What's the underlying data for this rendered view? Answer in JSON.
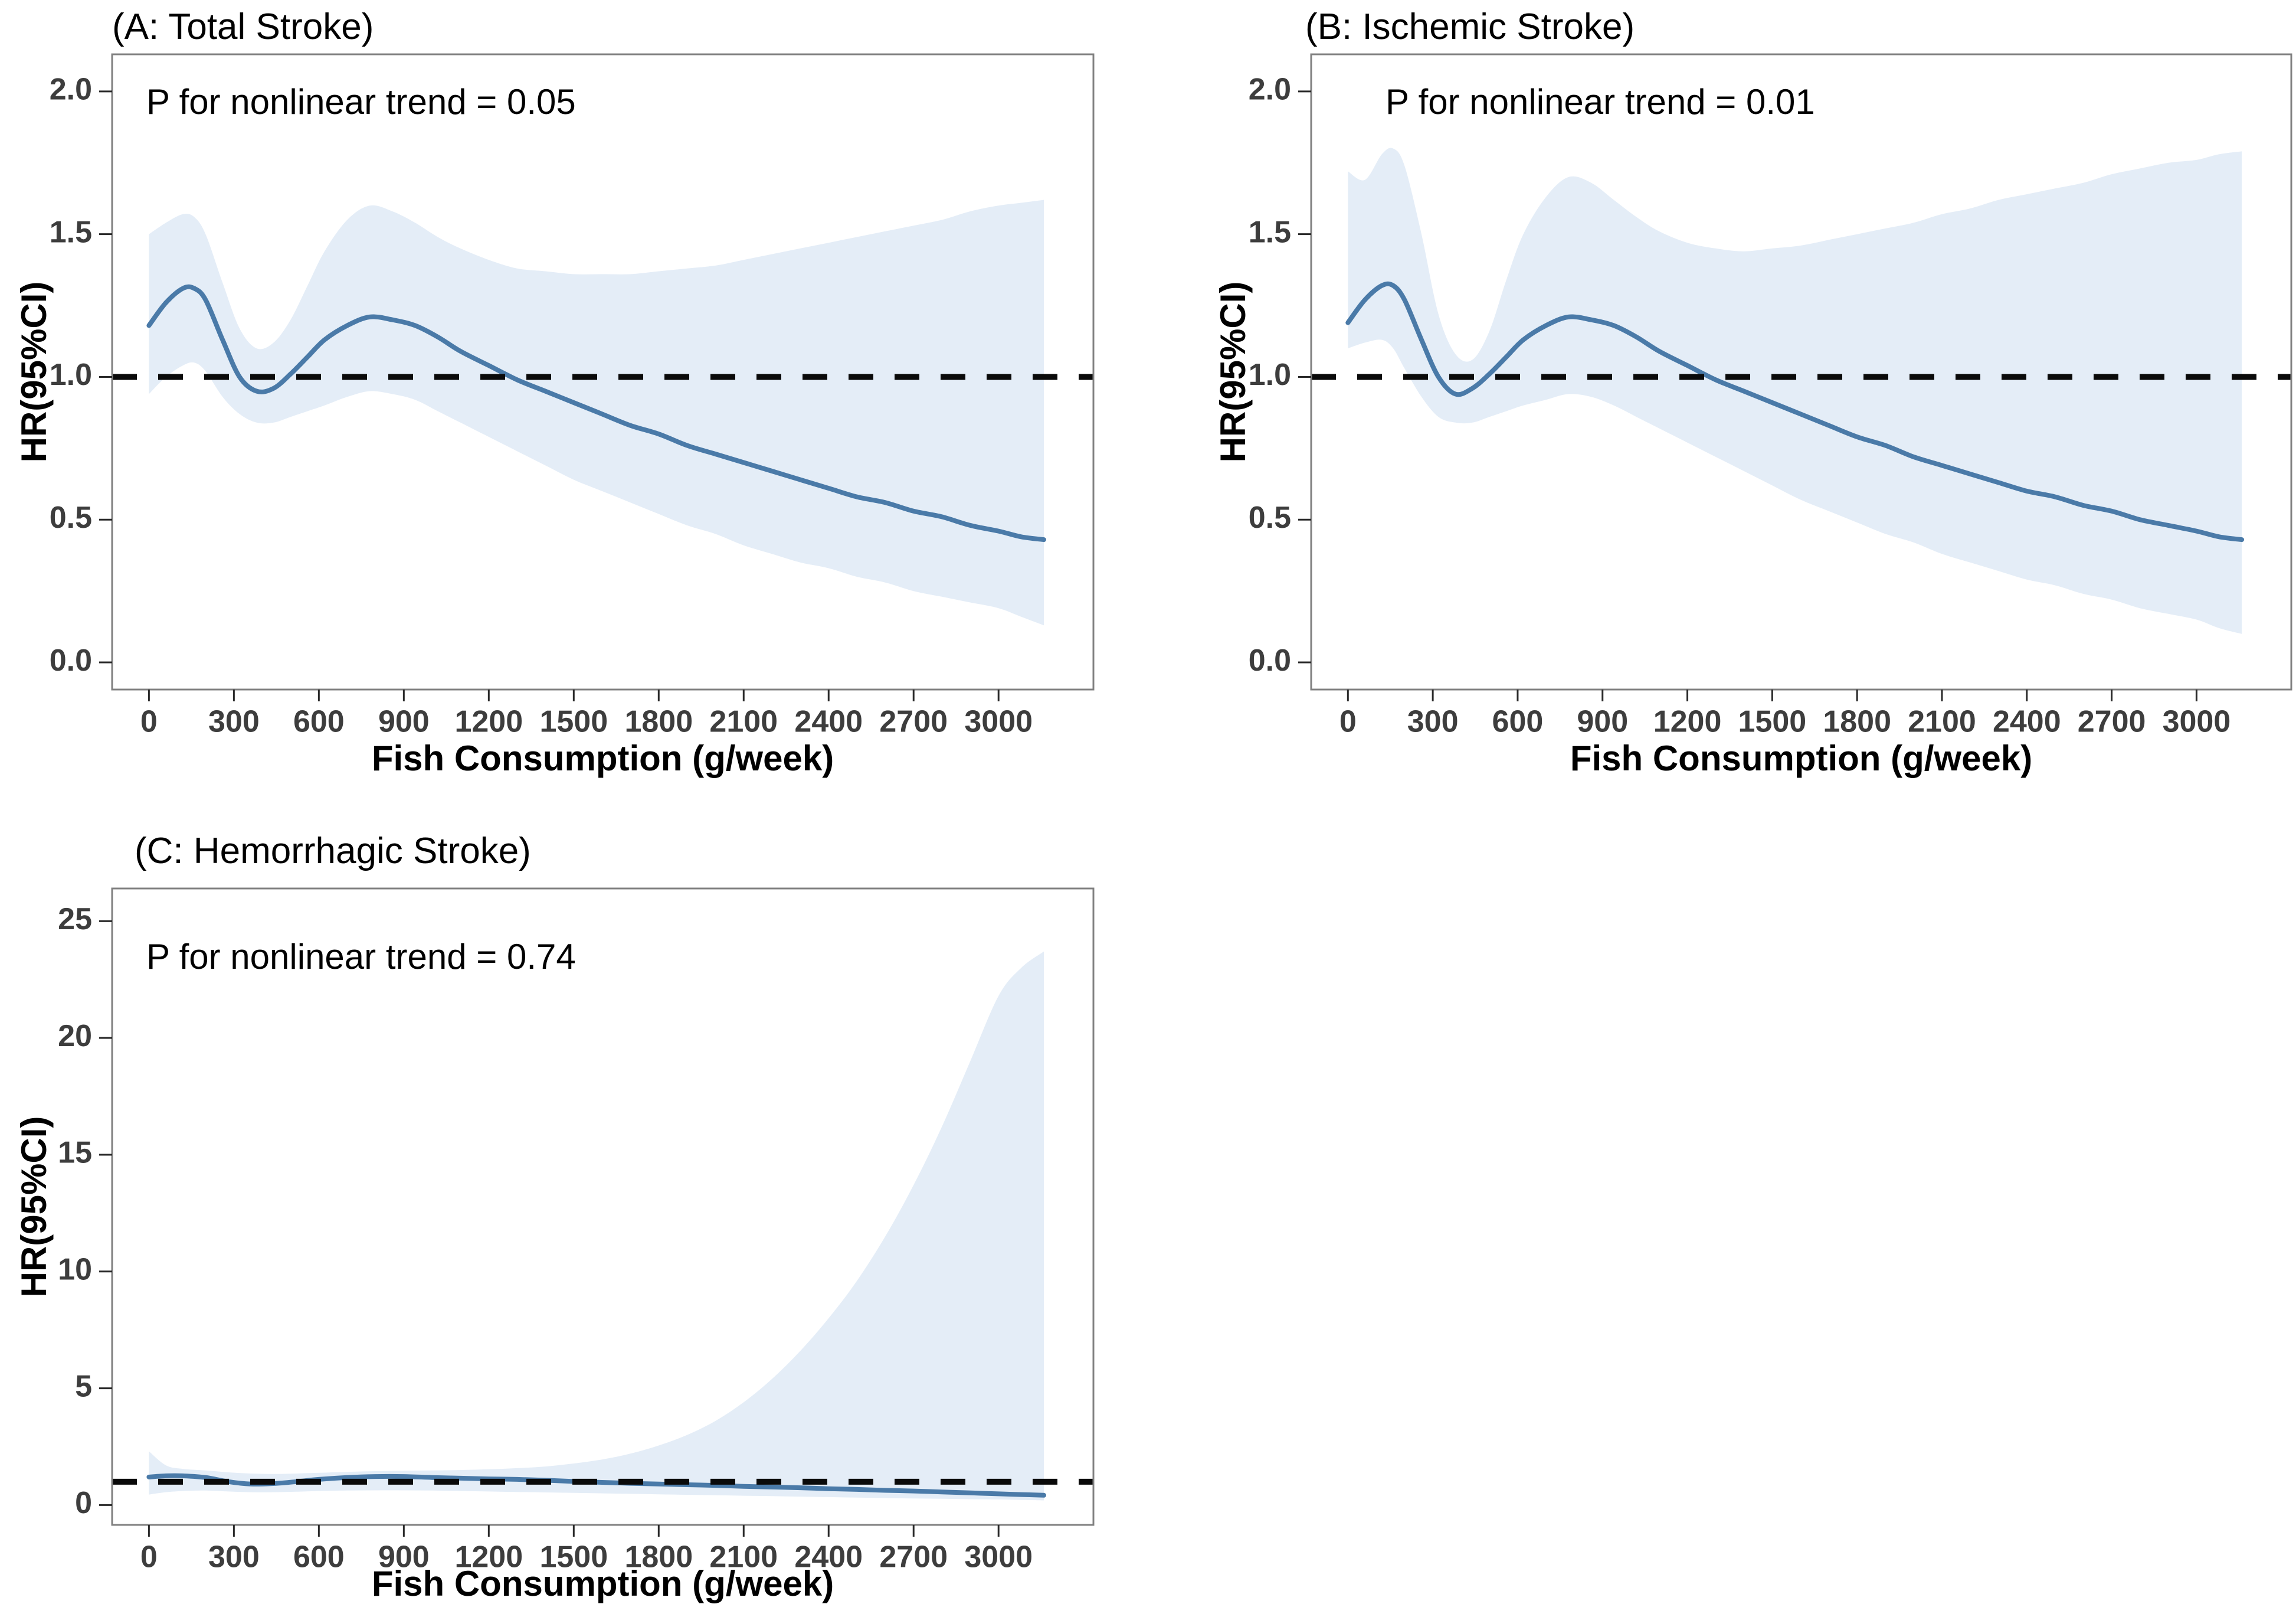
{
  "figure": {
    "background": "#ffffff",
    "x_axis_title": "Fish Consumption (g/week)",
    "y_axis_title": "HR(95%CI)"
  },
  "colors": {
    "ci_band": "#e4edf7",
    "curve": "#4a7aa8",
    "reference_line": "#0a0a0a",
    "plot_border": "#808080",
    "tick_mark": "#2a2a2a",
    "tick_label": "#3d3d3d",
    "text": "#000000"
  },
  "chart_data": [
    {
      "id": "A",
      "type": "line",
      "title": "(A: Total Stroke)",
      "p_label": "P for nonlinear trend = 0.05",
      "xlabel": "Fish Consumption (g/week)",
      "ylabel": "HR(95%CI)",
      "x_ticks": [
        0,
        300,
        600,
        900,
        1200,
        1500,
        1800,
        2100,
        2400,
        2700,
        3000
      ],
      "y_tick_values": [
        0,
        0.5,
        1,
        1.5,
        2
      ],
      "y_tick_labels": [
        "0.0",
        "0.5",
        "1.0",
        "1.5",
        "2.0"
      ],
      "xlim": [
        -130,
        3335
      ],
      "ylim": [
        -0.095,
        2.13
      ],
      "ref_line_y": 1,
      "grid": false,
      "legend_position": "none",
      "series": {
        "name": "HR with 95% CI",
        "x": [
          0,
          60,
          120,
          160,
          200,
          260,
          320,
          380,
          440,
          500,
          560,
          620,
          700,
          780,
          860,
          940,
          1020,
          1100,
          1200,
          1300,
          1400,
          1500,
          1600,
          1700,
          1800,
          1900,
          2000,
          2100,
          2200,
          2300,
          2400,
          2500,
          2600,
          2700,
          2800,
          2900,
          3000,
          3080,
          3160
        ],
        "hr": [
          1.18,
          1.26,
          1.31,
          1.31,
          1.27,
          1.13,
          1.0,
          0.95,
          0.96,
          1.01,
          1.07,
          1.13,
          1.18,
          1.21,
          1.2,
          1.18,
          1.14,
          1.09,
          1.04,
          0.99,
          0.95,
          0.91,
          0.87,
          0.83,
          0.8,
          0.76,
          0.73,
          0.7,
          0.67,
          0.64,
          0.61,
          0.58,
          0.56,
          0.53,
          0.51,
          0.48,
          0.46,
          0.44,
          0.43
        ],
        "ci_low": [
          0.94,
          1.0,
          1.04,
          1.05,
          1.02,
          0.93,
          0.87,
          0.84,
          0.84,
          0.86,
          0.88,
          0.9,
          0.93,
          0.95,
          0.94,
          0.92,
          0.88,
          0.84,
          0.79,
          0.74,
          0.69,
          0.64,
          0.6,
          0.56,
          0.52,
          0.48,
          0.45,
          0.41,
          0.38,
          0.35,
          0.33,
          0.3,
          0.28,
          0.25,
          0.23,
          0.21,
          0.19,
          0.16,
          0.13
        ],
        "ci_high": [
          1.5,
          1.54,
          1.57,
          1.56,
          1.5,
          1.33,
          1.17,
          1.1,
          1.12,
          1.2,
          1.32,
          1.44,
          1.55,
          1.6,
          1.58,
          1.54,
          1.49,
          1.45,
          1.41,
          1.38,
          1.37,
          1.36,
          1.36,
          1.36,
          1.37,
          1.38,
          1.39,
          1.41,
          1.43,
          1.45,
          1.47,
          1.49,
          1.51,
          1.53,
          1.55,
          1.58,
          1.6,
          1.61,
          1.62
        ]
      }
    },
    {
      "id": "B",
      "type": "line",
      "title": "(B: Ischemic Stroke)",
      "p_label": "P for nonlinear trend = 0.01",
      "xlabel": "Fish Consumption (g/week)",
      "ylabel": "HR(95%CI)",
      "x_ticks": [
        0,
        300,
        600,
        900,
        1200,
        1500,
        1800,
        2100,
        2400,
        2700,
        3000
      ],
      "y_tick_values": [
        0,
        0.5,
        1,
        1.5,
        2
      ],
      "y_tick_labels": [
        "0.0",
        "0.5",
        "1.0",
        "1.5",
        "2.0"
      ],
      "xlim": [
        -130,
        3335
      ],
      "ylim": [
        -0.095,
        2.13
      ],
      "ref_line_y": 1,
      "grid": false,
      "legend_position": "none",
      "series": {
        "name": "HR with 95% CI",
        "x": [
          0,
          60,
          120,
          160,
          200,
          260,
          320,
          380,
          440,
          500,
          560,
          620,
          700,
          780,
          860,
          940,
          1020,
          1100,
          1200,
          1300,
          1400,
          1500,
          1600,
          1700,
          1800,
          1900,
          2000,
          2100,
          2200,
          2300,
          2400,
          2500,
          2600,
          2700,
          2800,
          2900,
          3000,
          3080,
          3160
        ],
        "hr": [
          1.19,
          1.27,
          1.32,
          1.32,
          1.27,
          1.13,
          1.0,
          0.94,
          0.96,
          1.01,
          1.07,
          1.13,
          1.18,
          1.21,
          1.2,
          1.18,
          1.14,
          1.09,
          1.04,
          0.99,
          0.95,
          0.91,
          0.87,
          0.83,
          0.79,
          0.76,
          0.72,
          0.69,
          0.66,
          0.63,
          0.6,
          0.58,
          0.55,
          0.53,
          0.5,
          0.48,
          0.46,
          0.44,
          0.43
        ],
        "ci_low": [
          1.1,
          1.12,
          1.13,
          1.1,
          1.03,
          0.93,
          0.86,
          0.84,
          0.84,
          0.86,
          0.88,
          0.9,
          0.92,
          0.94,
          0.93,
          0.9,
          0.86,
          0.82,
          0.77,
          0.72,
          0.67,
          0.62,
          0.57,
          0.53,
          0.49,
          0.45,
          0.42,
          0.38,
          0.35,
          0.32,
          0.29,
          0.27,
          0.24,
          0.22,
          0.19,
          0.17,
          0.15,
          0.12,
          0.1
        ],
        "ci_high": [
          1.72,
          1.69,
          1.78,
          1.8,
          1.74,
          1.5,
          1.22,
          1.08,
          1.06,
          1.16,
          1.34,
          1.5,
          1.63,
          1.7,
          1.68,
          1.62,
          1.56,
          1.51,
          1.47,
          1.45,
          1.44,
          1.45,
          1.46,
          1.48,
          1.5,
          1.52,
          1.54,
          1.57,
          1.59,
          1.62,
          1.64,
          1.66,
          1.68,
          1.71,
          1.73,
          1.75,
          1.76,
          1.78,
          1.79
        ]
      }
    },
    {
      "id": "C",
      "type": "line",
      "title": "(C: Hemorrhagic Stroke)",
      "p_label": "P for nonlinear trend = 0.74",
      "xlabel": "Fish Consumption (g/week)",
      "ylabel": "HR(95%CI)",
      "x_ticks": [
        0,
        300,
        600,
        900,
        1200,
        1500,
        1800,
        2100,
        2400,
        2700,
        3000
      ],
      "y_tick_values": [
        0,
        5,
        10,
        15,
        20,
        25
      ],
      "y_tick_labels": [
        "0",
        "5",
        "10",
        "15",
        "20",
        "25"
      ],
      "xlim": [
        -130,
        3335
      ],
      "ylim": [
        -0.85,
        26.4
      ],
      "ref_line_y": 1,
      "grid": false,
      "legend_position": "none",
      "series": {
        "name": "HR with 95% CI",
        "x": [
          0,
          60,
          120,
          200,
          280,
          360,
          440,
          520,
          600,
          700,
          800,
          900,
          1000,
          1100,
          1200,
          1300,
          1400,
          1500,
          1600,
          1700,
          1800,
          1900,
          2000,
          2100,
          2200,
          2300,
          2400,
          2500,
          2600,
          2700,
          2800,
          2900,
          3000,
          3080,
          3160
        ],
        "hr": [
          1.2,
          1.25,
          1.25,
          1.18,
          1.0,
          0.9,
          0.92,
          1.0,
          1.1,
          1.18,
          1.22,
          1.22,
          1.18,
          1.15,
          1.12,
          1.1,
          1.06,
          1.01,
          0.97,
          0.93,
          0.9,
          0.87,
          0.84,
          0.8,
          0.77,
          0.74,
          0.7,
          0.67,
          0.63,
          0.6,
          0.56,
          0.52,
          0.48,
          0.45,
          0.42
        ],
        "ci_low": [
          0.45,
          0.55,
          0.6,
          0.62,
          0.58,
          0.55,
          0.55,
          0.57,
          0.6,
          0.62,
          0.63,
          0.63,
          0.62,
          0.6,
          0.58,
          0.56,
          0.54,
          0.52,
          0.5,
          0.48,
          0.46,
          0.44,
          0.42,
          0.4,
          0.38,
          0.36,
          0.34,
          0.32,
          0.3,
          0.28,
          0.27,
          0.25,
          0.24,
          0.22,
          0.2
        ],
        "ci_high": [
          2.3,
          1.7,
          1.55,
          1.48,
          1.4,
          1.35,
          1.33,
          1.35,
          1.38,
          1.42,
          1.45,
          1.47,
          1.48,
          1.5,
          1.53,
          1.58,
          1.65,
          1.78,
          1.95,
          2.2,
          2.55,
          3.0,
          3.6,
          4.4,
          5.4,
          6.6,
          8.0,
          9.6,
          11.5,
          13.7,
          16.2,
          19.0,
          21.8,
          23.0,
          23.7
        ]
      }
    }
  ]
}
